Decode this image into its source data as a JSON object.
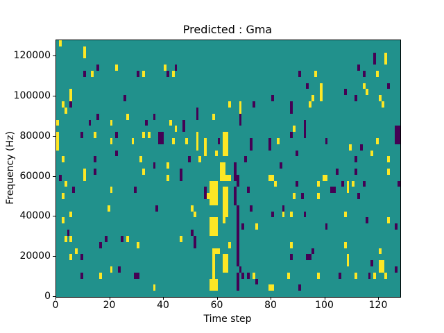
{
  "chart_data": {
    "type": "heatmap",
    "title": "Predicted : Gma",
    "xlabel": "Time step",
    "ylabel": "Frequency (Hz)",
    "x_range": [
      0,
      128
    ],
    "y_range": [
      0,
      128000
    ],
    "x_ticks": [
      0,
      20,
      40,
      60,
      80,
      100,
      120
    ],
    "y_ticks": [
      0,
      20000,
      40000,
      60000,
      80000,
      100000,
      120000
    ],
    "grid": {
      "cols": 128,
      "rows": 42
    },
    "legend_position": "none",
    "grid_lines": false,
    "colors": {
      "background_teal": "#21918c",
      "active_yellow": "#fde725",
      "active_purple": "#440154",
      "figure_background": "#ffffff",
      "axis_color": "#000000"
    },
    "cells": [
      [
        1,
        0,
        1,
        "y"
      ],
      [
        10,
        1,
        2,
        "y"
      ],
      [
        118,
        2,
        2,
        "p"
      ],
      [
        122,
        2,
        2,
        "y"
      ],
      [
        15,
        4,
        1,
        "p"
      ],
      [
        22,
        4,
        1,
        "y"
      ],
      [
        40,
        4,
        1,
        "y"
      ],
      [
        44,
        4,
        1,
        "p"
      ],
      [
        112,
        4,
        1,
        "p"
      ],
      [
        10,
        5,
        1,
        "p"
      ],
      [
        13,
        5,
        1,
        "y"
      ],
      [
        30,
        5,
        1,
        "p"
      ],
      [
        32,
        5,
        1,
        "y"
      ],
      [
        41,
        5,
        1,
        "p"
      ],
      [
        43,
        5,
        1,
        "y"
      ],
      [
        90,
        5,
        1,
        "p"
      ],
      [
        96,
        5,
        1,
        "y"
      ],
      [
        114,
        5,
        1,
        "p"
      ],
      [
        119,
        5,
        1,
        "y"
      ],
      [
        93,
        7,
        1,
        "p"
      ],
      [
        98,
        7,
        3,
        "y"
      ],
      [
        114,
        7,
        1,
        "y"
      ],
      [
        123,
        7,
        1,
        "p"
      ],
      [
        5,
        8,
        2,
        "y"
      ],
      [
        107,
        8,
        1,
        "p"
      ],
      [
        115,
        8,
        1,
        "y"
      ],
      [
        25,
        9,
        1,
        "p"
      ],
      [
        80,
        9,
        1,
        "p"
      ],
      [
        95,
        9,
        1,
        "y"
      ],
      [
        111,
        9,
        1,
        "p"
      ],
      [
        120,
        9,
        1,
        "y"
      ],
      [
        2,
        10,
        1,
        "y"
      ],
      [
        5,
        10,
        1,
        "p"
      ],
      [
        64,
        10,
        1,
        "y"
      ],
      [
        68,
        10,
        2,
        "y"
      ],
      [
        73,
        10,
        1,
        "p"
      ],
      [
        87,
        10,
        2,
        "p"
      ],
      [
        94,
        10,
        1,
        "y"
      ],
      [
        121,
        10,
        1,
        "y"
      ],
      [
        3,
        11,
        1,
        "y"
      ],
      [
        52,
        11,
        2,
        "p"
      ],
      [
        15,
        12,
        1,
        "p"
      ],
      [
        26,
        12,
        1,
        "y"
      ],
      [
        36,
        12,
        1,
        "p"
      ],
      [
        58,
        12,
        1,
        "y"
      ],
      [
        68,
        12,
        2,
        "p"
      ],
      [
        0,
        13,
        1,
        "y"
      ],
      [
        12,
        13,
        1,
        "p"
      ],
      [
        20,
        13,
        1,
        "y"
      ],
      [
        33,
        13,
        1,
        "p"
      ],
      [
        42,
        13,
        1,
        "y"
      ],
      [
        47,
        13,
        1,
        "p"
      ],
      [
        92,
        13,
        1,
        "p"
      ],
      [
        44,
        14,
        1,
        "y"
      ],
      [
        47,
        14,
        1,
        "p"
      ],
      [
        88,
        14,
        1,
        "y"
      ],
      [
        92,
        14,
        2,
        "p"
      ],
      [
        126,
        14,
        3,
        "p",
        2
      ],
      [
        0,
        15,
        3,
        "y"
      ],
      [
        9,
        15,
        1,
        "p"
      ],
      [
        14,
        15,
        1,
        "y"
      ],
      [
        22,
        15,
        1,
        "p"
      ],
      [
        32,
        15,
        1,
        "y"
      ],
      [
        34,
        15,
        1,
        "y"
      ],
      [
        38,
        15,
        2,
        "p",
        2
      ],
      [
        52,
        15,
        3,
        "y"
      ],
      [
        62,
        15,
        4,
        "y",
        2
      ],
      [
        87,
        15,
        1,
        "p"
      ],
      [
        20,
        16,
        1,
        "y"
      ],
      [
        28,
        16,
        1,
        "y"
      ],
      [
        43,
        16,
        1,
        "y"
      ],
      [
        48,
        16,
        1,
        "y"
      ],
      [
        55,
        16,
        3,
        "y"
      ],
      [
        60,
        16,
        1,
        "p"
      ],
      [
        72,
        16,
        2,
        "p"
      ],
      [
        79,
        16,
        2,
        "p"
      ],
      [
        82,
        16,
        1,
        "y"
      ],
      [
        100,
        16,
        1,
        "p"
      ],
      [
        119,
        16,
        1,
        "y"
      ],
      [
        109,
        17,
        1,
        "y"
      ],
      [
        113,
        17,
        1,
        "p"
      ],
      [
        22,
        18,
        1,
        "p"
      ],
      [
        59,
        18,
        1,
        "y"
      ],
      [
        89,
        18,
        1,
        "p"
      ],
      [
        117,
        18,
        1,
        "y"
      ],
      [
        2,
        19,
        1,
        "y"
      ],
      [
        14,
        19,
        1,
        "p"
      ],
      [
        31,
        19,
        1,
        "y"
      ],
      [
        49,
        19,
        1,
        "p"
      ],
      [
        53,
        19,
        1,
        "y"
      ],
      [
        70,
        19,
        1,
        "p"
      ],
      [
        111,
        19,
        1,
        "p"
      ],
      [
        123,
        19,
        1,
        "y"
      ],
      [
        36,
        20,
        1,
        "p"
      ],
      [
        41,
        20,
        1,
        "y"
      ],
      [
        61,
        20,
        3,
        "y",
        2
      ],
      [
        66,
        20,
        3,
        "p"
      ],
      [
        83,
        20,
        1,
        "p"
      ],
      [
        10,
        21,
        1,
        "y"
      ],
      [
        14,
        21,
        1,
        "p"
      ],
      [
        32,
        21,
        1,
        "y"
      ],
      [
        46,
        21,
        1,
        "p"
      ],
      [
        104,
        21,
        1,
        "p"
      ],
      [
        111,
        21,
        1,
        "p"
      ],
      [
        123,
        21,
        1,
        "y"
      ],
      [
        1,
        22,
        1,
        "p"
      ],
      [
        10,
        22,
        1,
        "y"
      ],
      [
        41,
        22,
        1,
        "y"
      ],
      [
        46,
        22,
        1,
        "p"
      ],
      [
        62,
        22,
        1,
        "y",
        3
      ],
      [
        67,
        22,
        2,
        "p"
      ],
      [
        79,
        22,
        1,
        "y",
        2
      ],
      [
        99,
        22,
        1,
        "y",
        2
      ],
      [
        3,
        23,
        1,
        "y"
      ],
      [
        57,
        23,
        4,
        "y",
        3
      ],
      [
        81,
        23,
        1,
        "y"
      ],
      [
        89,
        23,
        1,
        "p"
      ],
      [
        97,
        23,
        1,
        "y"
      ],
      [
        106,
        23,
        1,
        "p"
      ],
      [
        108,
        23,
        2,
        "y"
      ],
      [
        110,
        23,
        1,
        "y"
      ],
      [
        114,
        23,
        1,
        "p"
      ],
      [
        127,
        23,
        1,
        "p"
      ],
      [
        6,
        24,
        1,
        "p"
      ],
      [
        20,
        24,
        1,
        "y"
      ],
      [
        29,
        24,
        1,
        "p"
      ],
      [
        55,
        24,
        2,
        "p"
      ],
      [
        62,
        24,
        5,
        "y",
        2
      ],
      [
        66,
        24,
        3,
        "p"
      ],
      [
        71,
        24,
        1,
        "p"
      ],
      [
        102,
        24,
        1,
        "p",
        2
      ],
      [
        2,
        25,
        1,
        "y"
      ],
      [
        56,
        25,
        1,
        "y"
      ],
      [
        88,
        25,
        1,
        "y"
      ],
      [
        91,
        25,
        1,
        "p"
      ],
      [
        97,
        25,
        1,
        "y"
      ],
      [
        112,
        25,
        1,
        "p"
      ],
      [
        19,
        27,
        1,
        "y"
      ],
      [
        37,
        27,
        1,
        "p"
      ],
      [
        50,
        27,
        1,
        "y"
      ],
      [
        67,
        27,
        10,
        "p"
      ],
      [
        72,
        27,
        1,
        "p"
      ],
      [
        84,
        27,
        1,
        "p"
      ],
      [
        5,
        28,
        1,
        "y"
      ],
      [
        51,
        28,
        1,
        "y"
      ],
      [
        62,
        28,
        2,
        "y"
      ],
      [
        80,
        28,
        1,
        "p"
      ],
      [
        84,
        28,
        1,
        "y"
      ],
      [
        87,
        28,
        1,
        "y"
      ],
      [
        92,
        28,
        1,
        "p"
      ],
      [
        107,
        28,
        1,
        "y"
      ],
      [
        2,
        29,
        1,
        "y"
      ],
      [
        57,
        29,
        3,
        "y",
        3
      ],
      [
        115,
        29,
        1,
        "p"
      ],
      [
        123,
        29,
        1,
        "y"
      ],
      [
        69,
        30,
        1,
        "p"
      ],
      [
        74,
        30,
        1,
        "y"
      ],
      [
        100,
        30,
        1,
        "p"
      ],
      [
        126,
        30,
        1,
        "p"
      ],
      [
        4,
        31,
        1,
        "p"
      ],
      [
        50,
        31,
        1,
        "p"
      ],
      [
        3,
        32,
        1,
        "y"
      ],
      [
        5,
        32,
        1,
        "y"
      ],
      [
        18,
        32,
        1,
        "p"
      ],
      [
        24,
        32,
        1,
        "p"
      ],
      [
        26,
        32,
        1,
        "y"
      ],
      [
        46,
        32,
        1,
        "y"
      ],
      [
        51,
        32,
        2,
        "p"
      ],
      [
        16,
        33,
        1,
        "p"
      ],
      [
        30,
        33,
        1,
        "y"
      ],
      [
        64,
        33,
        1,
        "y"
      ],
      [
        87,
        33,
        1,
        "y"
      ],
      [
        107,
        33,
        1,
        "y"
      ],
      [
        7,
        34,
        1,
        "y"
      ],
      [
        58,
        34,
        1,
        "y",
        3
      ],
      [
        95,
        34,
        1,
        "p"
      ],
      [
        120,
        34,
        1,
        "y"
      ],
      [
        5,
        35,
        1,
        "y"
      ],
      [
        9,
        35,
        1,
        "p"
      ],
      [
        58,
        35,
        4,
        "y"
      ],
      [
        62,
        35,
        3,
        "y",
        2
      ],
      [
        87,
        35,
        1,
        "p"
      ],
      [
        93,
        35,
        1,
        "p",
        2
      ],
      [
        108,
        35,
        2,
        "y"
      ],
      [
        117,
        36,
        1,
        "p"
      ],
      [
        120,
        36,
        2,
        "y",
        2
      ],
      [
        20,
        37,
        1,
        "y"
      ],
      [
        23,
        37,
        1,
        "p"
      ],
      [
        68,
        37,
        1,
        "p"
      ],
      [
        126,
        37,
        1,
        "p"
      ],
      [
        9,
        38,
        1,
        "p"
      ],
      [
        16,
        38,
        1,
        "y"
      ],
      [
        29,
        38,
        1,
        "p",
        2
      ],
      [
        67,
        38,
        3,
        "p"
      ],
      [
        69,
        38,
        1,
        "p"
      ],
      [
        71,
        38,
        1,
        "p"
      ],
      [
        73,
        38,
        1,
        "y"
      ],
      [
        86,
        38,
        1,
        "y"
      ],
      [
        97,
        38,
        1,
        "y"
      ],
      [
        105,
        38,
        1,
        "p"
      ],
      [
        111,
        38,
        1,
        "y"
      ],
      [
        116,
        38,
        1,
        "p"
      ],
      [
        118,
        38,
        1,
        "y"
      ],
      [
        122,
        38,
        1,
        "y"
      ],
      [
        57,
        39,
        2,
        "y",
        3
      ],
      [
        74,
        39,
        1,
        "p"
      ],
      [
        36,
        40,
        1,
        "y"
      ],
      [
        79,
        40,
        1,
        "y",
        2
      ],
      [
        90,
        40,
        1,
        "p"
      ]
    ]
  }
}
